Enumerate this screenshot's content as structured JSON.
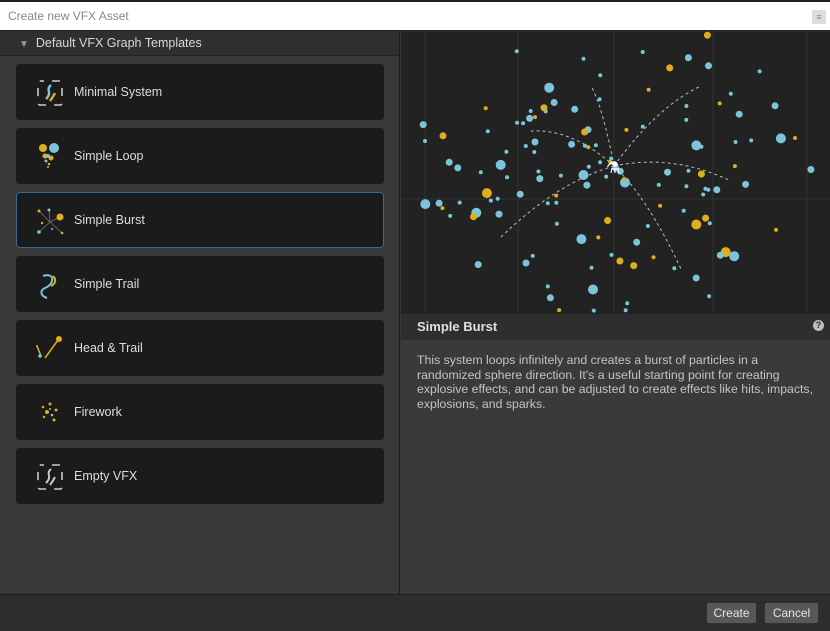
{
  "window": {
    "title": "Create new VFX Asset"
  },
  "section": {
    "label": "Default VFX Graph Templates"
  },
  "templates": [
    {
      "label": "Minimal System",
      "icon": "minimal-system-icon"
    },
    {
      "label": "Simple Loop",
      "icon": "simple-loop-icon"
    },
    {
      "label": "Simple Burst",
      "icon": "simple-burst-icon",
      "selected": true
    },
    {
      "label": "Simple Trail",
      "icon": "simple-trail-icon"
    },
    {
      "label": "Head & Trail",
      "icon": "head-trail-icon"
    },
    {
      "label": "Firework",
      "icon": "firework-icon"
    },
    {
      "label": "Empty VFX",
      "icon": "empty-vfx-icon"
    }
  ],
  "details": {
    "title": "Simple Burst",
    "description": "This system loops infinitely and creates a burst of particles in a randomized sphere direction. It's a useful starting point for creating explosive effects, and can be adjusted to create effects like hits, impacts, explosions, and sparks."
  },
  "footer": {
    "create": "Create",
    "cancel": "Cancel"
  },
  "colors": {
    "blue": "#7cc4dc",
    "yellow": "#d8a820",
    "selection": "#3b6a92"
  }
}
